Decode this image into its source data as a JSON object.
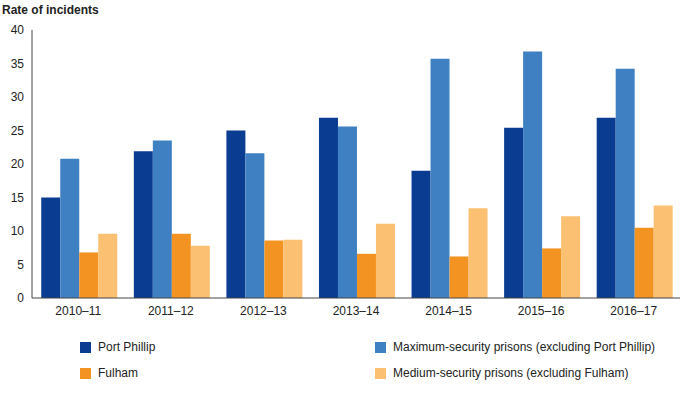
{
  "chart_data": {
    "type": "bar",
    "y_label": "Rate of incidents",
    "categories": [
      "2010–11",
      "2011–12",
      "2012–13",
      "2013–14",
      "2014–15",
      "2015–16",
      "2016–17"
    ],
    "series": [
      {
        "name": "Port Phillip",
        "color": "#0a3d91",
        "values": [
          15,
          21.9,
          25,
          26.9,
          19,
          25.4,
          26.9
        ]
      },
      {
        "name": "Maximum-security prisons (excluding Port Phillip)",
        "color": "#3f80c2",
        "values": [
          20.8,
          23.5,
          21.6,
          25.6,
          35.7,
          36.8,
          34.2
        ]
      },
      {
        "name": "Fulham",
        "color": "#f39322",
        "values": [
          6.8,
          9.6,
          8.6,
          6.6,
          6.2,
          7.4,
          10.5
        ]
      },
      {
        "name": "Medium-security prisons (excluding Fulham)",
        "color": "#fbc071",
        "values": [
          9.6,
          7.8,
          8.7,
          11.1,
          13.4,
          12.2,
          13.8
        ]
      }
    ],
    "ylim": [
      0,
      40
    ],
    "yticks": [
      0,
      5,
      10,
      15,
      20,
      25,
      30,
      35,
      40
    ],
    "grid": false,
    "legend": "bottom"
  }
}
